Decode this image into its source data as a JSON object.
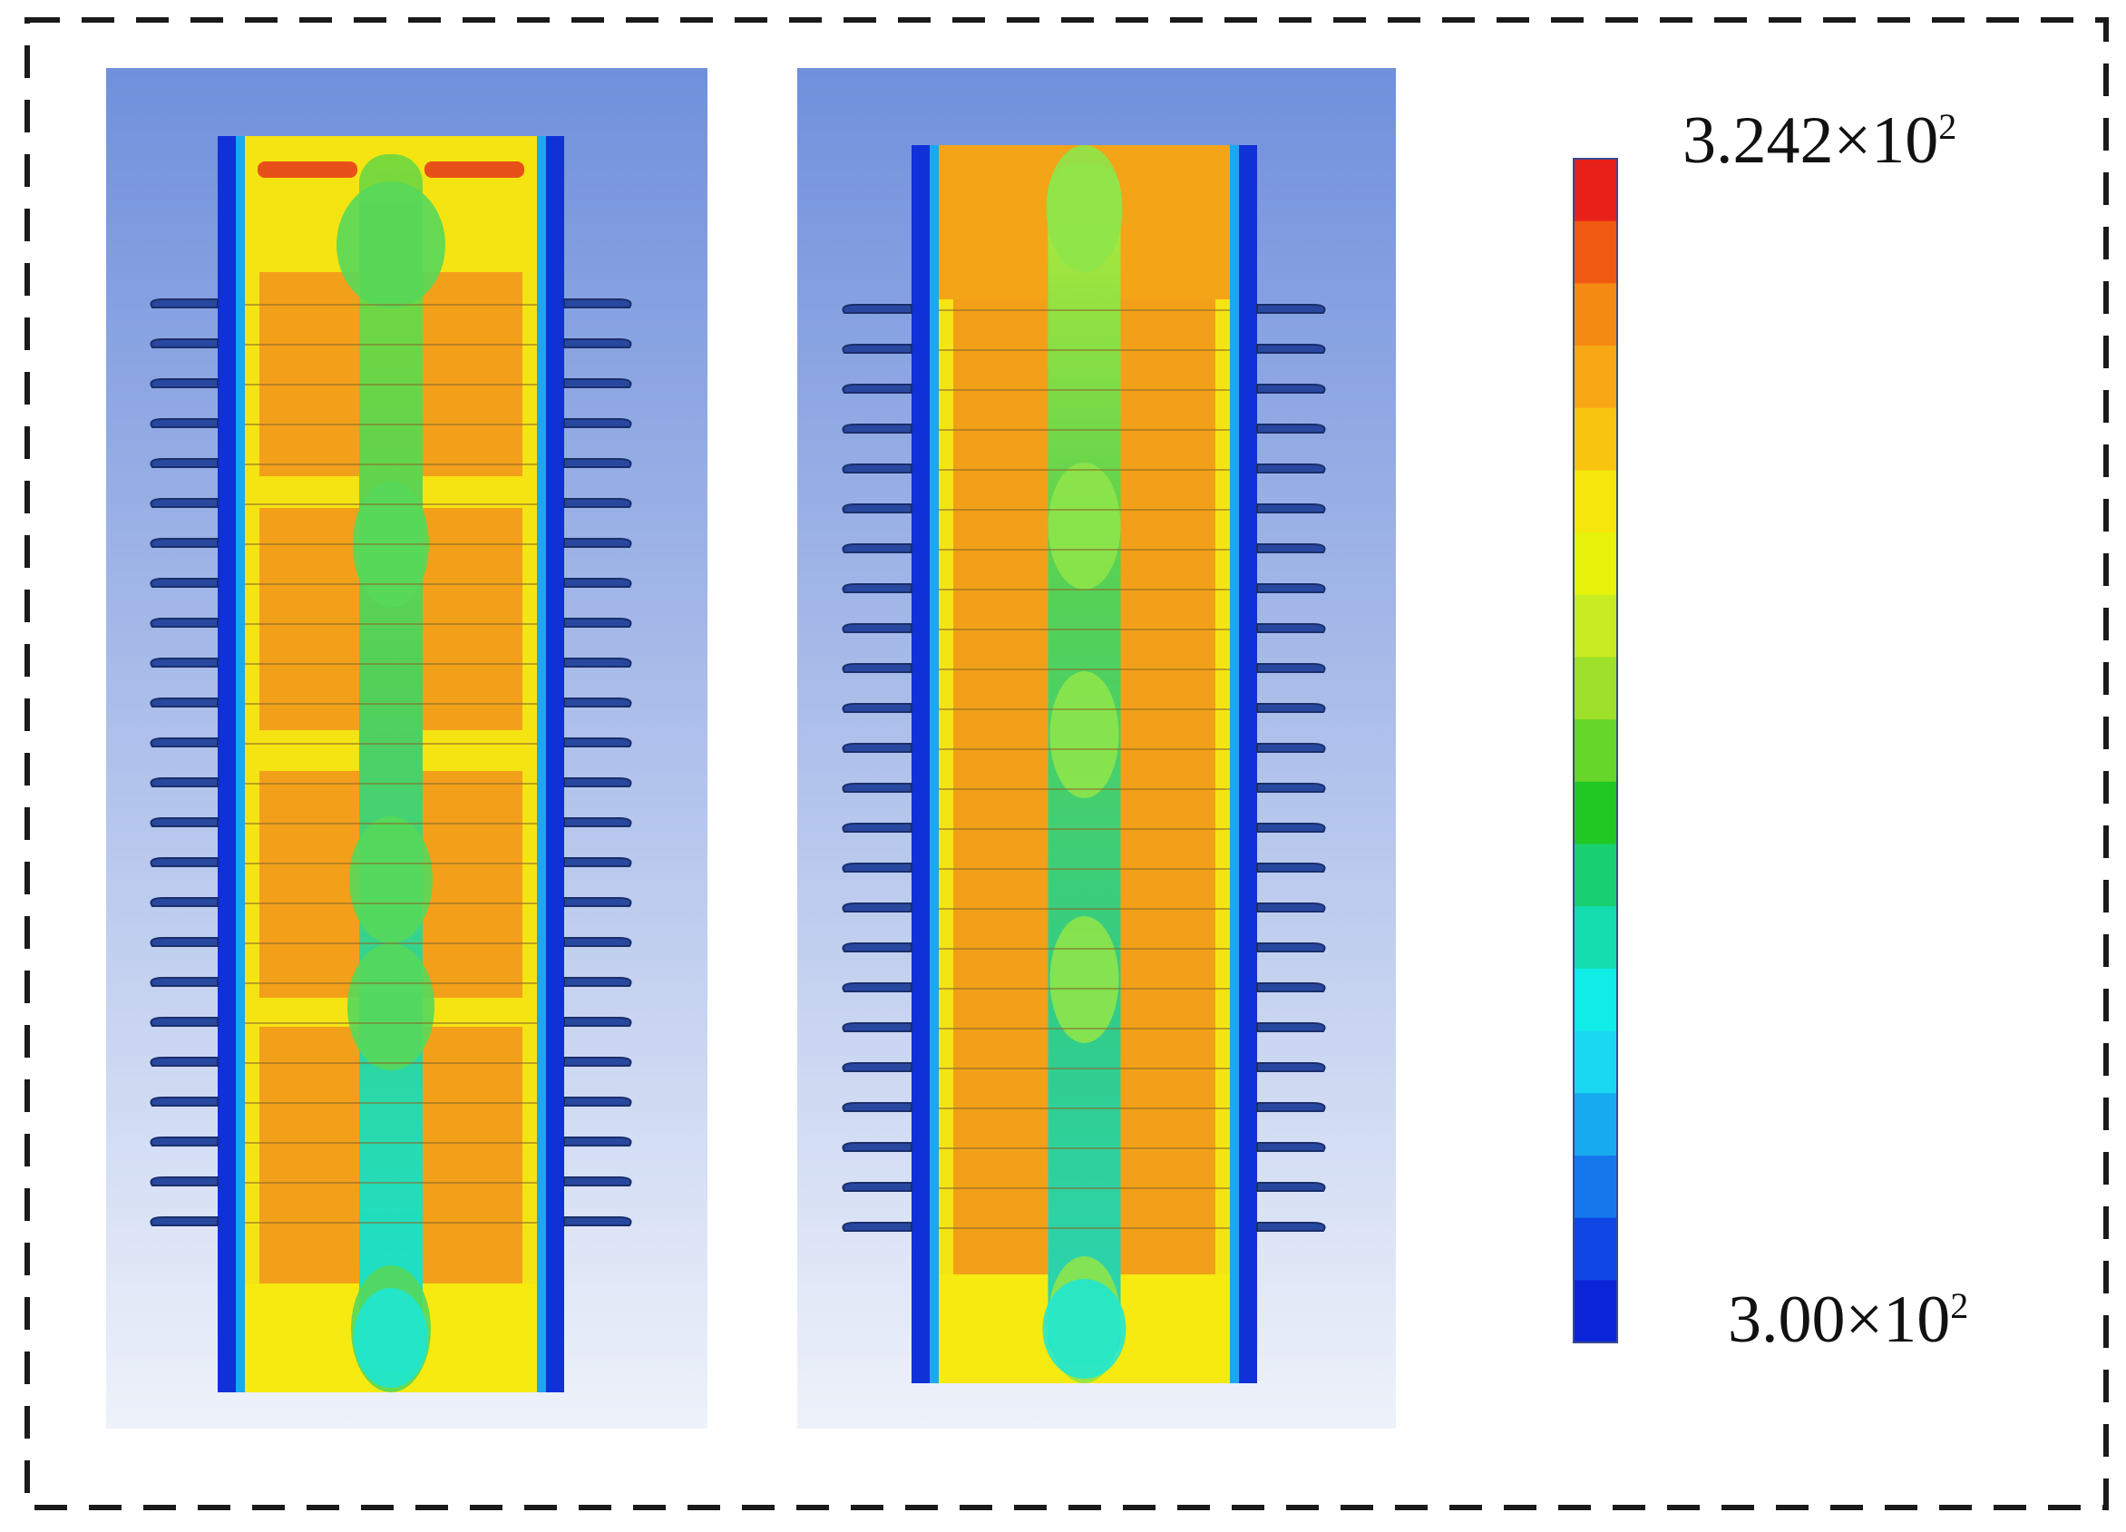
{
  "figure": {
    "panels": [
      {
        "name": "left-contour",
        "core_pattern": "banded"
      },
      {
        "name": "right-contour",
        "core_pattern": "uniform"
      }
    ],
    "sheds_per_side": 24,
    "background_gradient": [
      "#7090dc",
      "#eef2fa"
    ],
    "frame_style": "dashed"
  },
  "legend": {
    "max": {
      "mantissa": "3.242×10",
      "exponent": "2"
    },
    "min": {
      "mantissa": "3.00×10",
      "exponent": "2"
    },
    "colors": [
      "#e8201a",
      "#f05a10",
      "#f58a12",
      "#f8a814",
      "#f8c410",
      "#f6e60c",
      "#e8f30c",
      "#c8ec22",
      "#9ee02a",
      "#66d62a",
      "#20c824",
      "#18d070",
      "#14dcae",
      "#10ece6",
      "#1ad8f2",
      "#18aaf0",
      "#1478ec",
      "#1046e4",
      "#0c24d8"
    ]
  }
}
